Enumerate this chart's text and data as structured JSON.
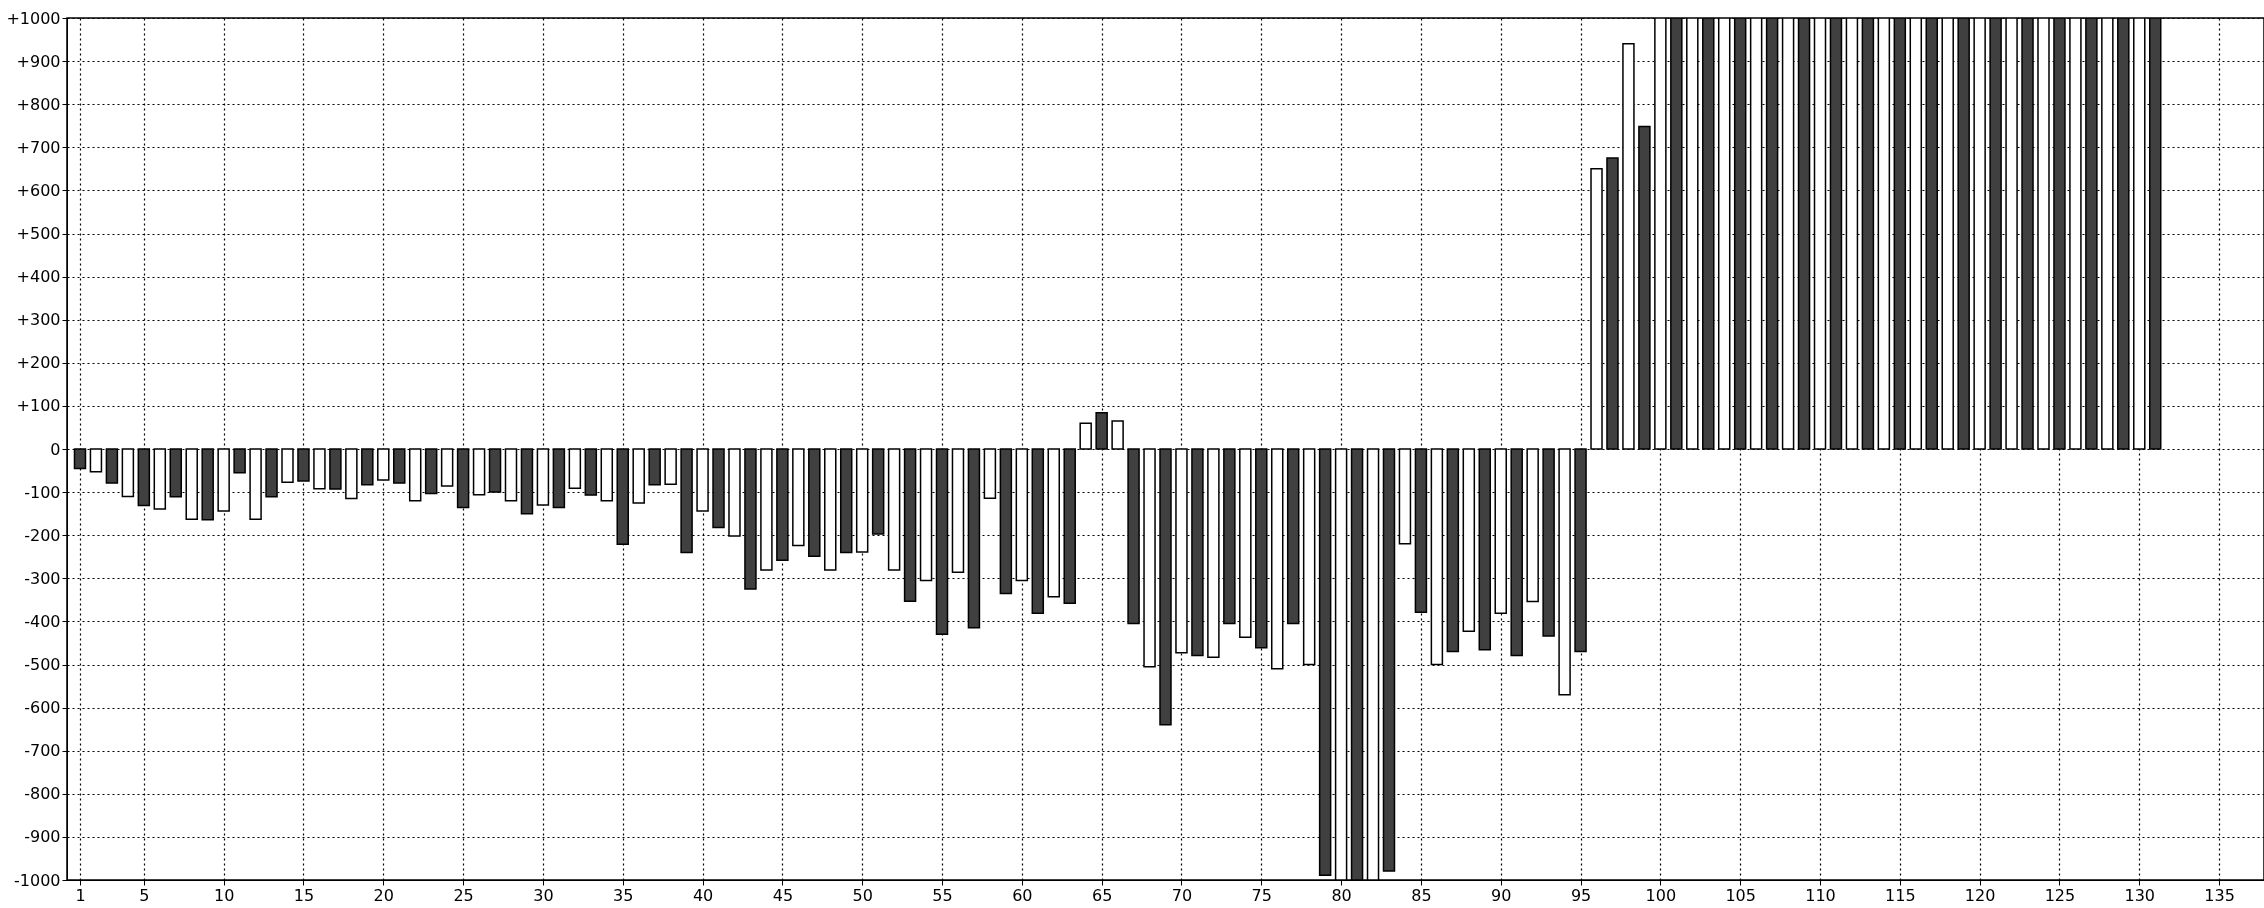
{
  "chart_data": {
    "type": "bar",
    "xlim": [
      0.5,
      137.5
    ],
    "xticks": [
      1,
      5,
      10,
      15,
      20,
      25,
      30,
      35,
      40,
      45,
      50,
      55,
      60,
      65,
      70,
      75,
      80,
      85,
      90,
      95,
      100,
      105,
      110,
      115,
      120,
      125,
      130,
      135
    ],
    "ylim": [
      -1000,
      1000
    ],
    "yticks": [
      -1000,
      -900,
      -800,
      -700,
      -600,
      -500,
      -400,
      -300,
      -200,
      -100,
      0,
      {
        "value": 100,
        "label": "+100"
      },
      {
        "value": 200,
        "label": "+200"
      },
      {
        "value": 300,
        "label": "+300"
      },
      {
        "value": 400,
        "label": "+400"
      },
      {
        "value": 500,
        "label": "+500"
      },
      {
        "value": 600,
        "label": "+600"
      },
      {
        "value": 700,
        "label": "+700"
      },
      {
        "value": 800,
        "label": "+800"
      },
      {
        "value": 900,
        "label": "+900"
      },
      {
        "value": 1000,
        "label": "+1000"
      }
    ],
    "grid": true,
    "series": [
      {
        "color": "#404040",
        "x": [
          1,
          3,
          5,
          7,
          9,
          11,
          13,
          15,
          17,
          19,
          21,
          23,
          25,
          27,
          29,
          31,
          33,
          35,
          37,
          39,
          41,
          43,
          45,
          47,
          49,
          51,
          53,
          55,
          57,
          59,
          61,
          63,
          65,
          67,
          69,
          71,
          73,
          75,
          77,
          79,
          81,
          83,
          85,
          87,
          89,
          91,
          93,
          95,
          97,
          99,
          101,
          103,
          105,
          107,
          109,
          111,
          113,
          115,
          117,
          119,
          121,
          123,
          125,
          127,
          129,
          131
        ],
        "values": [
          -45,
          -79,
          -131,
          -111,
          -164,
          -55,
          -111,
          -74,
          -93,
          -83,
          -79,
          -103,
          -136,
          -100,
          -150,
          -136,
          -107,
          -221,
          -83,
          -240,
          -182,
          -325,
          -258,
          -249,
          -240,
          -197,
          -353,
          -430,
          -415,
          -335,
          -381,
          -358,
          84,
          -405,
          -640,
          -479,
          -405,
          -461,
          -405,
          -989,
          -1000,
          -979,
          -379,
          -470,
          -466,
          -479,
          -434,
          -470,
          675,
          748,
          1000,
          1000,
          1000,
          1000,
          1000,
          1000,
          1000,
          1000,
          1000,
          1000,
          1000,
          1000,
          1000,
          1000,
          1000,
          1000
        ]
      },
      {
        "color": "#ffffff",
        "x": [
          2,
          4,
          6,
          8,
          10,
          12,
          14,
          16,
          18,
          20,
          22,
          24,
          26,
          28,
          30,
          32,
          34,
          36,
          38,
          40,
          42,
          44,
          46,
          48,
          50,
          52,
          54,
          56,
          58,
          60,
          62,
          64,
          66,
          68,
          70,
          72,
          74,
          76,
          78,
          80,
          82,
          84,
          86,
          88,
          90,
          92,
          94,
          96,
          98,
          100,
          102,
          104,
          106,
          108,
          110,
          112,
          114,
          116,
          118,
          120,
          122,
          124,
          126,
          128,
          130
        ],
        "values": [
          -53,
          -110,
          -139,
          -163,
          -144,
          -163,
          -77,
          -92,
          -115,
          -72,
          -120,
          -86,
          -106,
          -120,
          -130,
          -91,
          -120,
          -125,
          -82,
          -144,
          -202,
          -281,
          -224,
          -281,
          -239,
          -281,
          -305,
          -286,
          -114,
          -305,
          -343,
          60,
          65,
          -505,
          -473,
          -483,
          -437,
          -510,
          -500,
          -1000,
          -1000,
          -220,
          -500,
          -423,
          -381,
          -354,
          -570,
          650,
          940,
          1000,
          1000,
          1000,
          1000,
          1000,
          1000,
          1000,
          1000,
          1000,
          1000,
          1000,
          1000,
          1000,
          1000,
          1000,
          1000
        ]
      }
    ]
  }
}
